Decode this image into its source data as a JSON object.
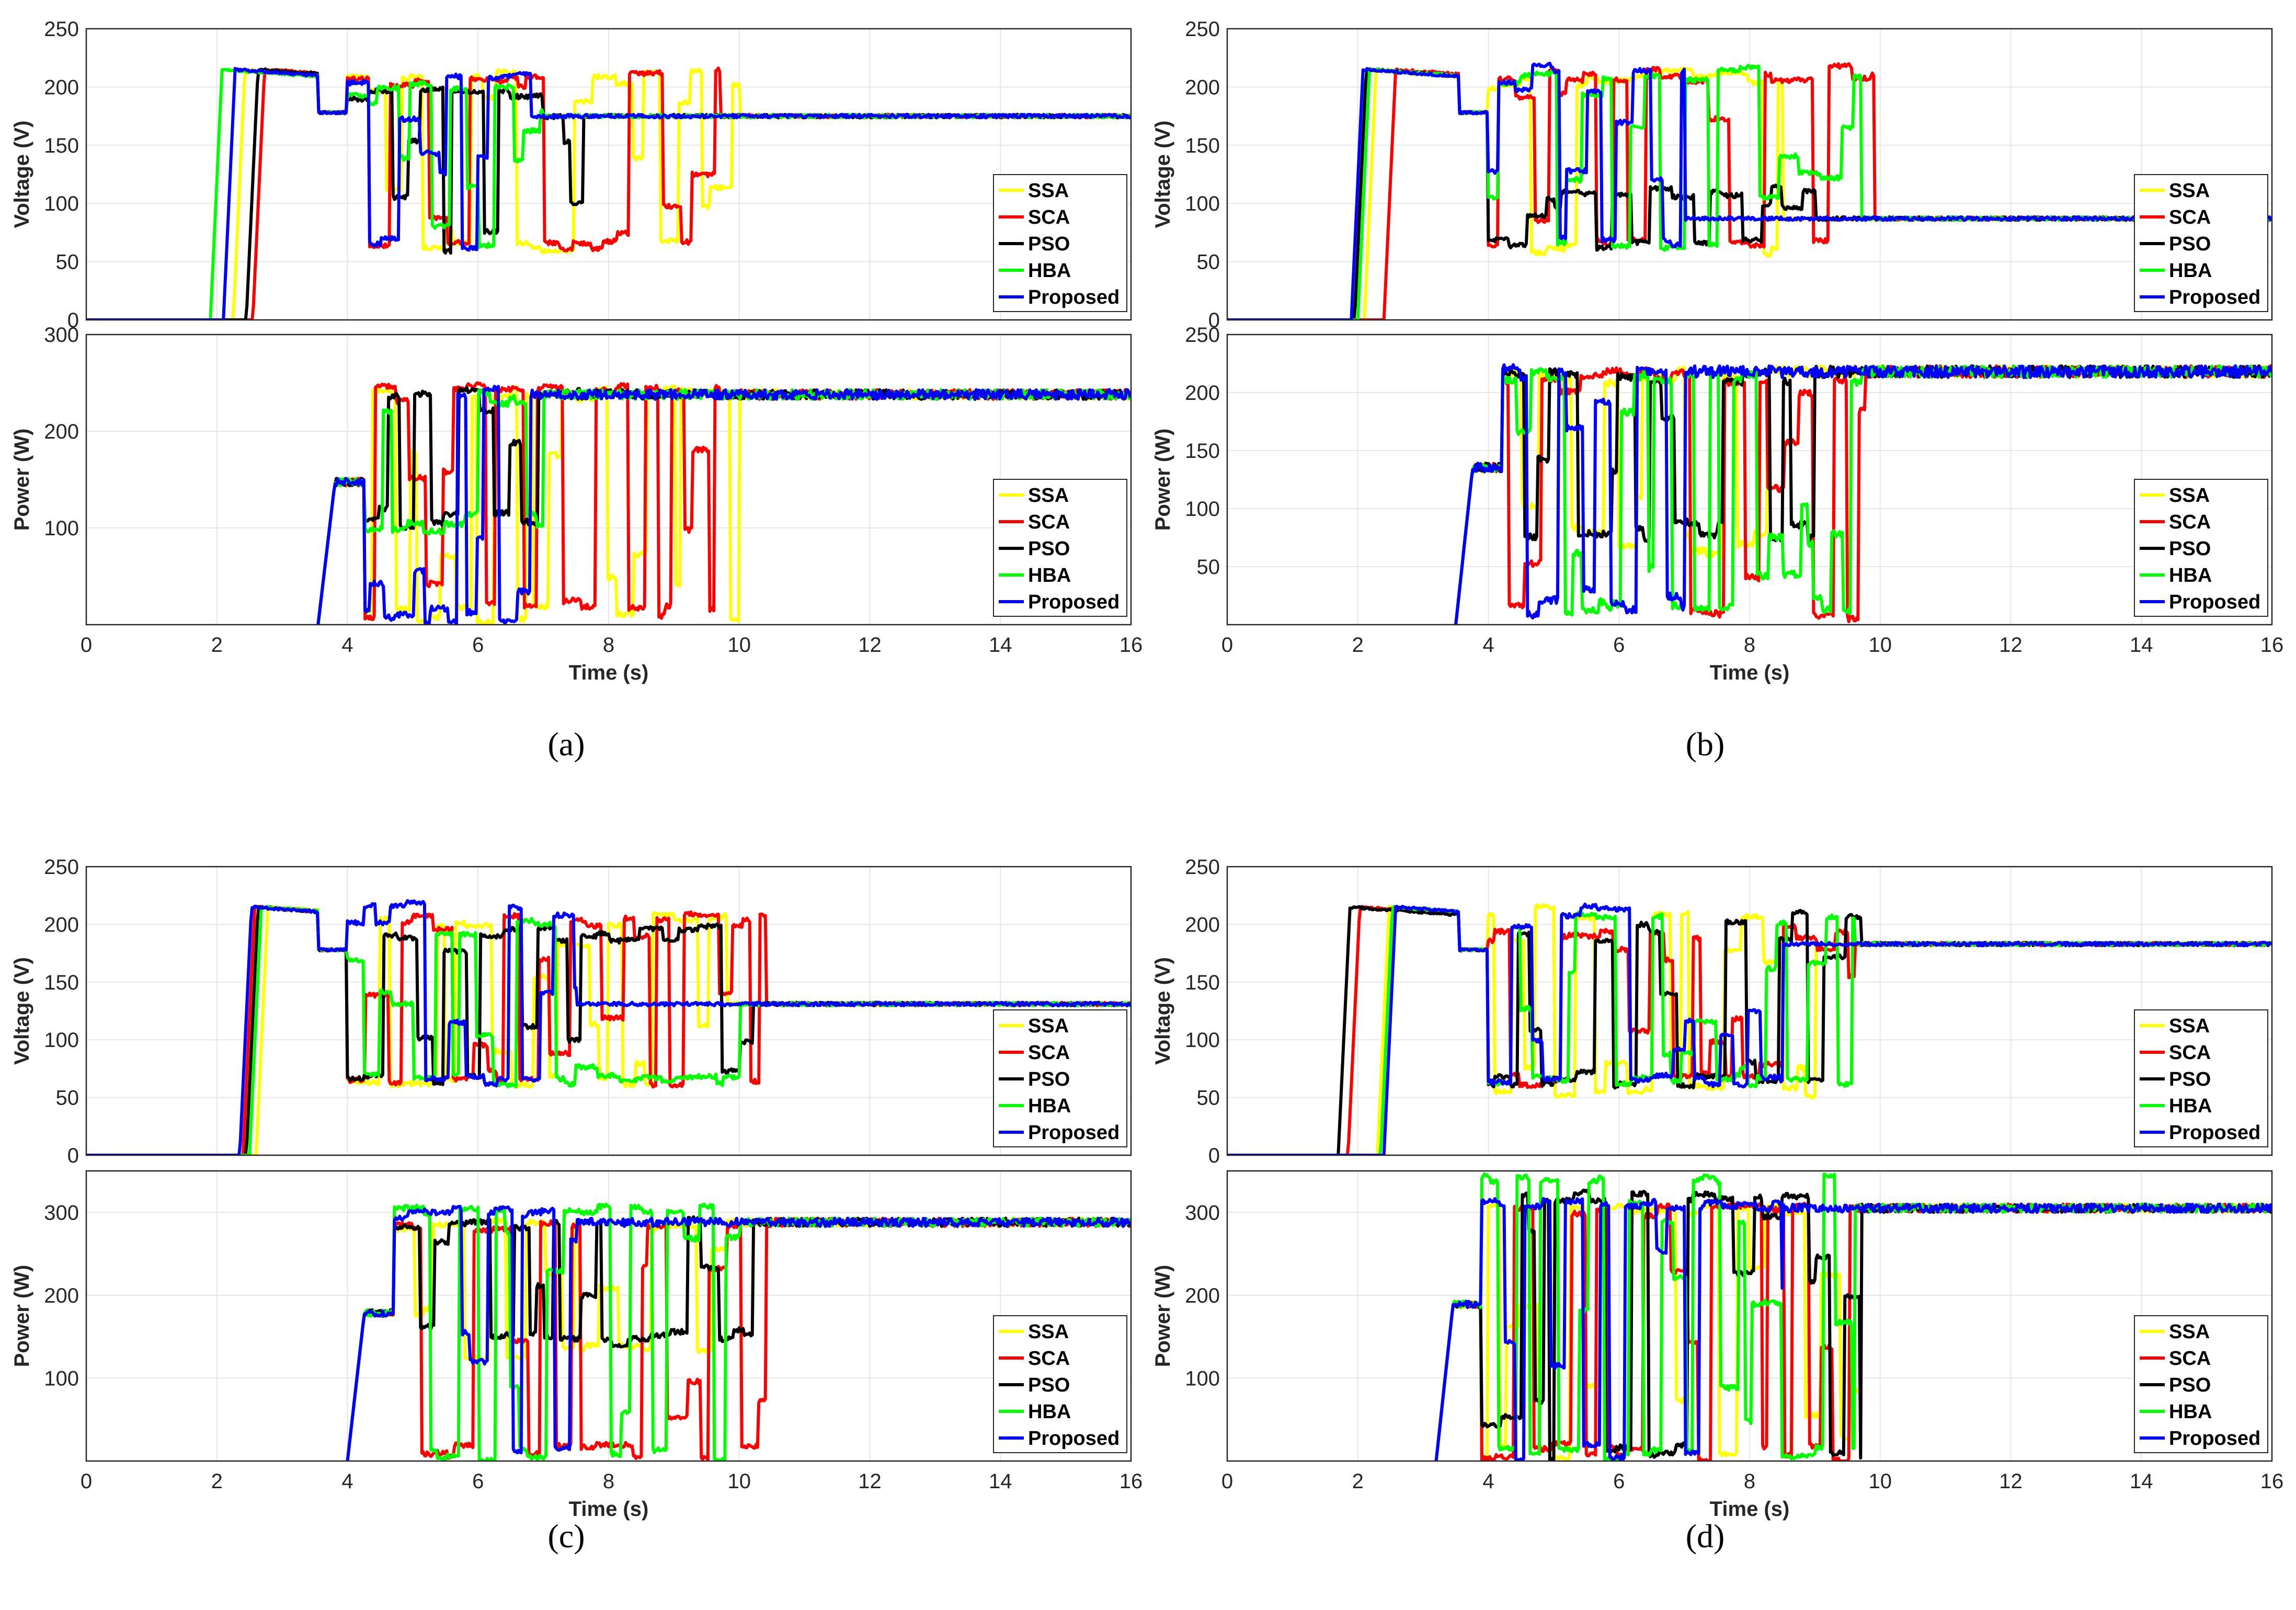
{
  "figure": {
    "x_axis_label": "Time (s)",
    "x_ticks": [
      "0",
      "2",
      "4",
      "6",
      "8",
      "10",
      "12",
      "14",
      "16"
    ],
    "series_names": [
      "SSA",
      "SCA",
      "PSO",
      "HBA",
      "Proposed"
    ],
    "series_colors": {
      "SSA": "#ffff00",
      "SCA": "#ff0000",
      "PSO": "#000000",
      "HBA": "#00ff00",
      "Proposed": "#0000ff"
    },
    "captions": [
      "(a)",
      "(b)",
      "(c)",
      "(d)"
    ]
  },
  "chart_data": [
    {
      "panel": "a",
      "plot": "voltage",
      "type": "line",
      "ylabel": "Voltage (V)",
      "xlim": [
        0,
        16
      ],
      "ylim": [
        0,
        250
      ],
      "yticks": [
        0,
        50,
        100,
        150,
        200,
        250
      ],
      "steady_state": 175,
      "series": [
        {
          "name": "SSA",
          "rise": 2.25,
          "settle": 10.0,
          "low": 58,
          "high": 215
        },
        {
          "name": "SCA",
          "rise": 2.55,
          "settle": 9.7,
          "low": 58,
          "high": 215
        },
        {
          "name": "PSO",
          "rise": 2.45,
          "settle": 7.6,
          "low": 58,
          "high": 200
        },
        {
          "name": "HBA",
          "rise": 1.9,
          "settle": 7.0,
          "low": 58,
          "high": 205
        },
        {
          "name": "Proposed",
          "rise": 2.1,
          "settle": 6.8,
          "low": 60,
          "high": 218
        }
      ]
    },
    {
      "panel": "a",
      "plot": "power",
      "type": "line",
      "ylabel": "Power (W)",
      "xlim": [
        0,
        16
      ],
      "ylim": [
        0,
        300
      ],
      "yticks": [
        100,
        200,
        300
      ],
      "steady_state": 238,
      "start": 3.55,
      "series": [
        {
          "name": "SSA",
          "settle": 10.0,
          "low": 0,
          "high": 245
        },
        {
          "name": "SCA",
          "settle": 9.7,
          "low": 5,
          "high": 250
        },
        {
          "name": "PSO",
          "settle": 7.6,
          "low": 95,
          "high": 242
        },
        {
          "name": "HBA",
          "settle": 7.0,
          "low": 95,
          "high": 242
        },
        {
          "name": "Proposed",
          "settle": 6.8,
          "low": 0,
          "high": 245
        }
      ]
    },
    {
      "panel": "b",
      "plot": "voltage",
      "type": "line",
      "ylabel": "Voltage (V)",
      "xlim": [
        0,
        16
      ],
      "ylim": [
        0,
        250
      ],
      "yticks": [
        0,
        50,
        100,
        150,
        200,
        250
      ],
      "steady_state": 87,
      "series": [
        {
          "name": "SSA",
          "rise": 2.1,
          "settle": 8.5,
          "low": 55,
          "high": 215
        },
        {
          "name": "SCA",
          "rise": 2.4,
          "settle": 9.9,
          "low": 60,
          "high": 220
        },
        {
          "name": "PSO",
          "rise": 1.95,
          "settle": 9.0,
          "low": 60,
          "high": 115
        },
        {
          "name": "HBA",
          "rise": 2.0,
          "settle": 9.7,
          "low": 60,
          "high": 220
        },
        {
          "name": "Proposed",
          "rise": 1.9,
          "settle": 7.0,
          "low": 62,
          "high": 220
        }
      ]
    },
    {
      "panel": "b",
      "plot": "power",
      "type": "line",
      "ylabel": "Power (W)",
      "xlim": [
        0,
        16
      ],
      "ylim": [
        0,
        250
      ],
      "yticks": [
        50,
        100,
        150,
        200,
        250
      ],
      "steady_state": 218,
      "start": 3.5,
      "series": [
        {
          "name": "SSA",
          "settle": 8.5,
          "low": 60,
          "high": 220
        },
        {
          "name": "SCA",
          "settle": 9.9,
          "low": 5,
          "high": 220
        },
        {
          "name": "PSO",
          "settle": 9.0,
          "low": 70,
          "high": 220
        },
        {
          "name": "HBA",
          "settle": 9.7,
          "low": 10,
          "high": 220
        },
        {
          "name": "Proposed",
          "settle": 7.0,
          "low": 5,
          "high": 225
        }
      ]
    },
    {
      "panel": "c",
      "plot": "voltage",
      "type": "line",
      "ylabel": "Voltage (V)",
      "xlim": [
        0,
        16
      ],
      "ylim": [
        0,
        250
      ],
      "yticks": [
        0,
        50,
        100,
        150,
        200,
        250
      ],
      "steady_state": 131,
      "series": [
        {
          "name": "SSA",
          "rise": 2.6,
          "settle": 9.8,
          "low": 60,
          "high": 210
        },
        {
          "name": "SCA",
          "rise": 2.4,
          "settle": 10.4,
          "low": 60,
          "high": 210
        },
        {
          "name": "PSO",
          "rise": 2.45,
          "settle": 10.2,
          "low": 60,
          "high": 200
        },
        {
          "name": "HBA",
          "rise": 2.5,
          "settle": 10.0,
          "low": 60,
          "high": 205
        },
        {
          "name": "Proposed",
          "rise": 2.35,
          "settle": 7.5,
          "low": 60,
          "high": 220
        }
      ]
    },
    {
      "panel": "c",
      "plot": "power",
      "type": "line",
      "ylabel": "Power (W)",
      "xlim": [
        0,
        16
      ],
      "ylim": [
        0,
        350
      ],
      "yticks": [
        100,
        200,
        300
      ],
      "steady_state": 288,
      "start": 4.0,
      "series": [
        {
          "name": "SSA",
          "settle": 9.8,
          "low": 120,
          "high": 290
        },
        {
          "name": "SCA",
          "settle": 10.4,
          "low": 0,
          "high": 290
        },
        {
          "name": "PSO",
          "settle": 10.2,
          "low": 140,
          "high": 292
        },
        {
          "name": "HBA",
          "settle": 10.0,
          "low": 0,
          "high": 310
        },
        {
          "name": "Proposed",
          "settle": 7.5,
          "low": 0,
          "high": 305
        }
      ]
    },
    {
      "panel": "d",
      "plot": "voltage",
      "type": "line",
      "ylabel": "Voltage (V)",
      "xlim": [
        0,
        16
      ],
      "ylim": [
        0,
        250
      ],
      "yticks": [
        0,
        50,
        100,
        150,
        200,
        250
      ],
      "steady_state": 183,
      "series": [
        {
          "name": "SSA",
          "rise": 2.3,
          "settle": 9.0,
          "low": 50,
          "high": 220
        },
        {
          "name": "SCA",
          "rise": 1.85,
          "settle": 9.6,
          "low": 60,
          "high": 200
        },
        {
          "name": "PSO",
          "rise": 1.7,
          "settle": 9.7,
          "low": 60,
          "high": 212
        },
        {
          "name": "HBA",
          "rise": 2.35,
          "settle": 9.6,
          "low": 60,
          "high": 212
        },
        {
          "name": "Proposed",
          "rise": 2.4,
          "settle": 8.5,
          "low": 60,
          "high": 222
        }
      ]
    },
    {
      "panel": "d",
      "plot": "power",
      "type": "line",
      "ylabel": "Power (W)",
      "xlim": [
        0,
        16
      ],
      "ylim": [
        0,
        350
      ],
      "yticks": [
        100,
        200,
        300
      ],
      "steady_state": 305,
      "start": 3.2,
      "series": [
        {
          "name": "SSA",
          "settle": 9.7,
          "low": 0,
          "high": 310
        },
        {
          "name": "SCA",
          "settle": 9.6,
          "low": 0,
          "high": 310
        },
        {
          "name": "PSO",
          "settle": 9.7,
          "low": 0,
          "high": 325
        },
        {
          "name": "HBA",
          "settle": 9.6,
          "low": 0,
          "high": 345
        },
        {
          "name": "Proposed",
          "settle": 8.5,
          "low": 0,
          "high": 315
        }
      ]
    }
  ]
}
